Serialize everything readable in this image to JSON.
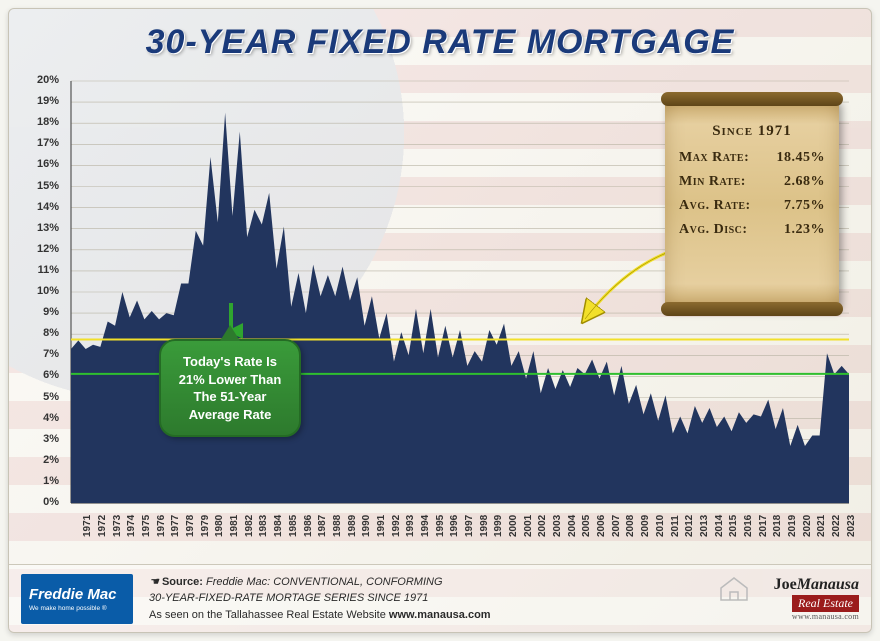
{
  "title": "30-YEAR FIXED RATE MORTGAGE",
  "chart": {
    "type": "area",
    "ylabel_suffix": "%",
    "ylim": [
      0,
      20
    ],
    "ytick_step": 1,
    "x_categories": [
      "1971",
      "1972",
      "1973",
      "1974",
      "1975",
      "1976",
      "1977",
      "1978",
      "1979",
      "1980",
      "1981",
      "1982",
      "1983",
      "1984",
      "1985",
      "1986",
      "1987",
      "1988",
      "1989",
      "1990",
      "1991",
      "1992",
      "1993",
      "1994",
      "1995",
      "1996",
      "1997",
      "1998",
      "1999",
      "2000",
      "2001",
      "2002",
      "2003",
      "2004",
      "2005",
      "2006",
      "2007",
      "2008",
      "2009",
      "2010",
      "2011",
      "2012",
      "2013",
      "2014",
      "2015",
      "2016",
      "2017",
      "2018",
      "2019",
      "2020",
      "2021",
      "2022",
      "2023"
    ],
    "series_lo": [
      7.3,
      7.3,
      7.4,
      8.4,
      8.8,
      8.7,
      8.7,
      8.9,
      10.4,
      12.2,
      13.3,
      13.6,
      12.6,
      13.2,
      11.1,
      9.3,
      9.0,
      9.8,
      9.8,
      9.6,
      8.4,
      7.8,
      6.7,
      7.0,
      7.1,
      6.9,
      6.9,
      6.5,
      6.7,
      7.5,
      6.5,
      5.9,
      5.2,
      5.4,
      5.5,
      6.1,
      5.9,
      5.1,
      4.7,
      4.2,
      3.9,
      3.3,
      3.3,
      3.8,
      3.6,
      3.4,
      3.8,
      4.1,
      3.5,
      2.7,
      2.7,
      3.2,
      6.1
    ],
    "series_hi": [
      7.7,
      7.5,
      8.6,
      10.0,
      9.6,
      9.1,
      9.0,
      10.4,
      12.9,
      16.4,
      18.5,
      17.6,
      13.9,
      14.7,
      13.1,
      10.9,
      11.3,
      10.8,
      11.2,
      10.7,
      9.8,
      9.0,
      8.1,
      9.2,
      9.2,
      8.4,
      8.2,
      7.2,
      8.2,
      8.5,
      7.2,
      7.2,
      6.4,
      6.3,
      6.4,
      6.8,
      6.7,
      6.5,
      5.6,
      5.2,
      5.1,
      4.1,
      4.6,
      4.5,
      4.1,
      4.3,
      4.2,
      4.9,
      4.5,
      3.7,
      3.2,
      7.1,
      6.5
    ],
    "fill_color": "#22355e",
    "grid_color": "#b9b4a4",
    "background_color": "transparent",
    "avg_line": {
      "value": 7.75,
      "color": "#f2e02a",
      "width": 2
    },
    "current_line": {
      "value": 6.12,
      "color": "#2fbf2f",
      "width": 2
    }
  },
  "scroll": {
    "header": "Since 1971",
    "rows": [
      {
        "label": "Max Rate:",
        "value": "18.45%"
      },
      {
        "label": "Min Rate:",
        "value": "2.68%"
      },
      {
        "label": "Avg. Rate:",
        "value": "7.75%"
      },
      {
        "label": "Avg. Disc:",
        "value": "1.23%"
      }
    ]
  },
  "callout": {
    "line1": "Today's Rate Is",
    "line2": "21% Lower Than",
    "line3": "The 51-Year",
    "line4": "Average Rate"
  },
  "footer": {
    "freddie_name": "Freddie Mac",
    "freddie_tag": "We make home possible ®",
    "source_label": "Source:",
    "source_text_1": "Freddie Mac: CONVENTIONAL, CONFORMING",
    "source_text_2": "30-YEAR-FIXED-RATE MORTAGE SERIES SINCE 1971",
    "source_text_3a": "As seen on the Tallahassee Real Estate Website ",
    "source_text_3b": "www.manausa.com",
    "brand_first": "Joe",
    "brand_last": "Manausa",
    "brand_re": "Real Estate",
    "brand_url": "www.manausa.com"
  }
}
